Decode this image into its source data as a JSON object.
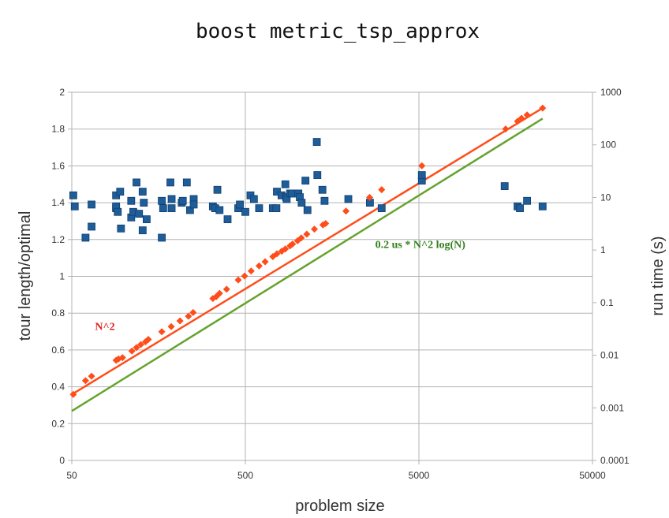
{
  "chart_data": {
    "type": "scatter",
    "title": "boost metric_tsp_approx",
    "xlabel": "problem size",
    "ylabel_left": "tour length/optimal",
    "ylabel_right": "run time (s)",
    "x_scale": "log",
    "x_ticks": [
      50,
      500,
      5000,
      50000
    ],
    "xlim": [
      50,
      50000
    ],
    "y_left_ticks": [
      "0",
      "0.2",
      "0.4",
      "0.6",
      "0.8",
      "1",
      "1.2",
      "1.4",
      "1.6",
      "1.8",
      "2"
    ],
    "y_left_lim": [
      0,
      2
    ],
    "y_right_scale": "log",
    "y_right_ticks": [
      "0.0001",
      "0.001",
      "0.01",
      "0.1",
      "1",
      "10",
      "100",
      "1000"
    ],
    "y_right_lim": [
      0.0001,
      1000
    ],
    "grid": true,
    "colors": {
      "ratio": "#1f5d99",
      "runtime": "#ff4d1a",
      "fit_n2": "#ff4d1a",
      "fit_nlogn": "#66a32e"
    },
    "annotations": [
      {
        "text": "N^2",
        "color": "#e0201a",
        "x": 68,
        "y": 0.03
      },
      {
        "text": "0.2 us * N^2 log(N)",
        "color": "#338019",
        "x": 2800,
        "y": 1.1
      }
    ],
    "series": [
      {
        "axis": "left",
        "marker": "square",
        "points": [
          [
            51,
            1.44
          ],
          [
            52,
            1.38
          ],
          [
            60,
            1.21
          ],
          [
            65,
            1.27
          ],
          [
            65,
            1.39
          ],
          [
            90,
            1.37
          ],
          [
            90,
            1.44
          ],
          [
            90,
            1.38
          ],
          [
            92,
            1.35
          ],
          [
            95,
            1.46
          ],
          [
            96,
            1.26
          ],
          [
            110,
            1.32
          ],
          [
            110,
            1.41
          ],
          [
            113,
            1.35
          ],
          [
            118,
            1.51
          ],
          [
            122,
            1.34
          ],
          [
            128,
            1.46
          ],
          [
            128,
            1.25
          ],
          [
            130,
            1.4
          ],
          [
            135,
            1.31
          ],
          [
            165,
            1.21
          ],
          [
            165,
            1.41
          ],
          [
            168,
            1.37
          ],
          [
            185,
            1.51
          ],
          [
            188,
            1.42
          ],
          [
            188,
            1.37
          ],
          [
            215,
            1.4
          ],
          [
            218,
            1.41
          ],
          [
            230,
            1.51
          ],
          [
            240,
            1.36
          ],
          [
            252,
            1.42
          ],
          [
            252,
            1.39
          ],
          [
            325,
            1.38
          ],
          [
            335,
            1.37
          ],
          [
            345,
            1.47
          ],
          [
            355,
            1.36
          ],
          [
            395,
            1.31
          ],
          [
            455,
            1.37
          ],
          [
            465,
            1.39
          ],
          [
            500,
            1.35
          ],
          [
            535,
            1.44
          ],
          [
            560,
            1.42
          ],
          [
            600,
            1.37
          ],
          [
            720,
            1.37
          ],
          [
            755,
            1.37
          ],
          [
            760,
            1.46
          ],
          [
            808,
            1.44
          ],
          [
            850,
            1.5
          ],
          [
            860,
            1.43
          ],
          [
            865,
            1.42
          ],
          [
            905,
            1.45
          ],
          [
            925,
            1.45
          ],
          [
            1010,
            1.45
          ],
          [
            1030,
            1.43
          ],
          [
            1055,
            1.4
          ],
          [
            1110,
            1.52
          ],
          [
            1140,
            1.36
          ],
          [
            1290,
            1.73
          ],
          [
            1300,
            1.55
          ],
          [
            1390,
            1.47
          ],
          [
            1430,
            1.41
          ],
          [
            1960,
            1.42
          ],
          [
            2610,
            1.4
          ],
          [
            3050,
            1.37
          ],
          [
            5200,
            1.52
          ],
          [
            5200,
            1.55
          ],
          [
            15600,
            1.49
          ],
          [
            18500,
            1.38
          ],
          [
            19100,
            1.37
          ],
          [
            21000,
            1.41
          ],
          [
            25800,
            1.38
          ]
        ]
      },
      {
        "axis": "right",
        "marker": "diamond",
        "points": [
          [
            51,
            0.0018
          ],
          [
            60,
            0.0033
          ],
          [
            65,
            0.004
          ],
          [
            90,
            0.008
          ],
          [
            93,
            0.0085
          ],
          [
            98,
            0.009
          ],
          [
            111,
            0.012
          ],
          [
            118,
            0.014
          ],
          [
            125,
            0.016
          ],
          [
            133,
            0.018
          ],
          [
            138,
            0.02
          ],
          [
            165,
            0.028
          ],
          [
            187,
            0.035
          ],
          [
            210,
            0.045
          ],
          [
            235,
            0.055
          ],
          [
            250,
            0.065
          ],
          [
            325,
            0.12
          ],
          [
            340,
            0.13
          ],
          [
            355,
            0.15
          ],
          [
            390,
            0.18
          ],
          [
            455,
            0.27
          ],
          [
            495,
            0.32
          ],
          [
            540,
            0.4
          ],
          [
            600,
            0.5
          ],
          [
            650,
            0.6
          ],
          [
            720,
            0.75
          ],
          [
            760,
            0.85
          ],
          [
            810,
            0.95
          ],
          [
            850,
            1.05
          ],
          [
            905,
            1.2
          ],
          [
            935,
            1.3
          ],
          [
            1000,
            1.5
          ],
          [
            1050,
            1.7
          ],
          [
            1130,
            2.0
          ],
          [
            1250,
            2.5
          ],
          [
            1400,
            3.0
          ],
          [
            1450,
            3.2
          ],
          [
            1900,
            5.5
          ],
          [
            2600,
            10
          ],
          [
            3050,
            14
          ],
          [
            5200,
            40
          ],
          [
            15800,
            200
          ],
          [
            18500,
            280
          ],
          [
            19500,
            320
          ],
          [
            21000,
            370
          ],
          [
            25800,
            500
          ]
        ]
      },
      {
        "axis": "right",
        "type": "line",
        "label": "N^2",
        "points": [
          [
            50,
            0.0018
          ],
          [
            25800,
            500
          ]
        ]
      },
      {
        "axis": "right",
        "type": "line",
        "label": "0.2 us * N^2 log(N)",
        "points": [
          [
            50,
            0.00087
          ],
          [
            25800,
            315
          ]
        ]
      }
    ]
  }
}
